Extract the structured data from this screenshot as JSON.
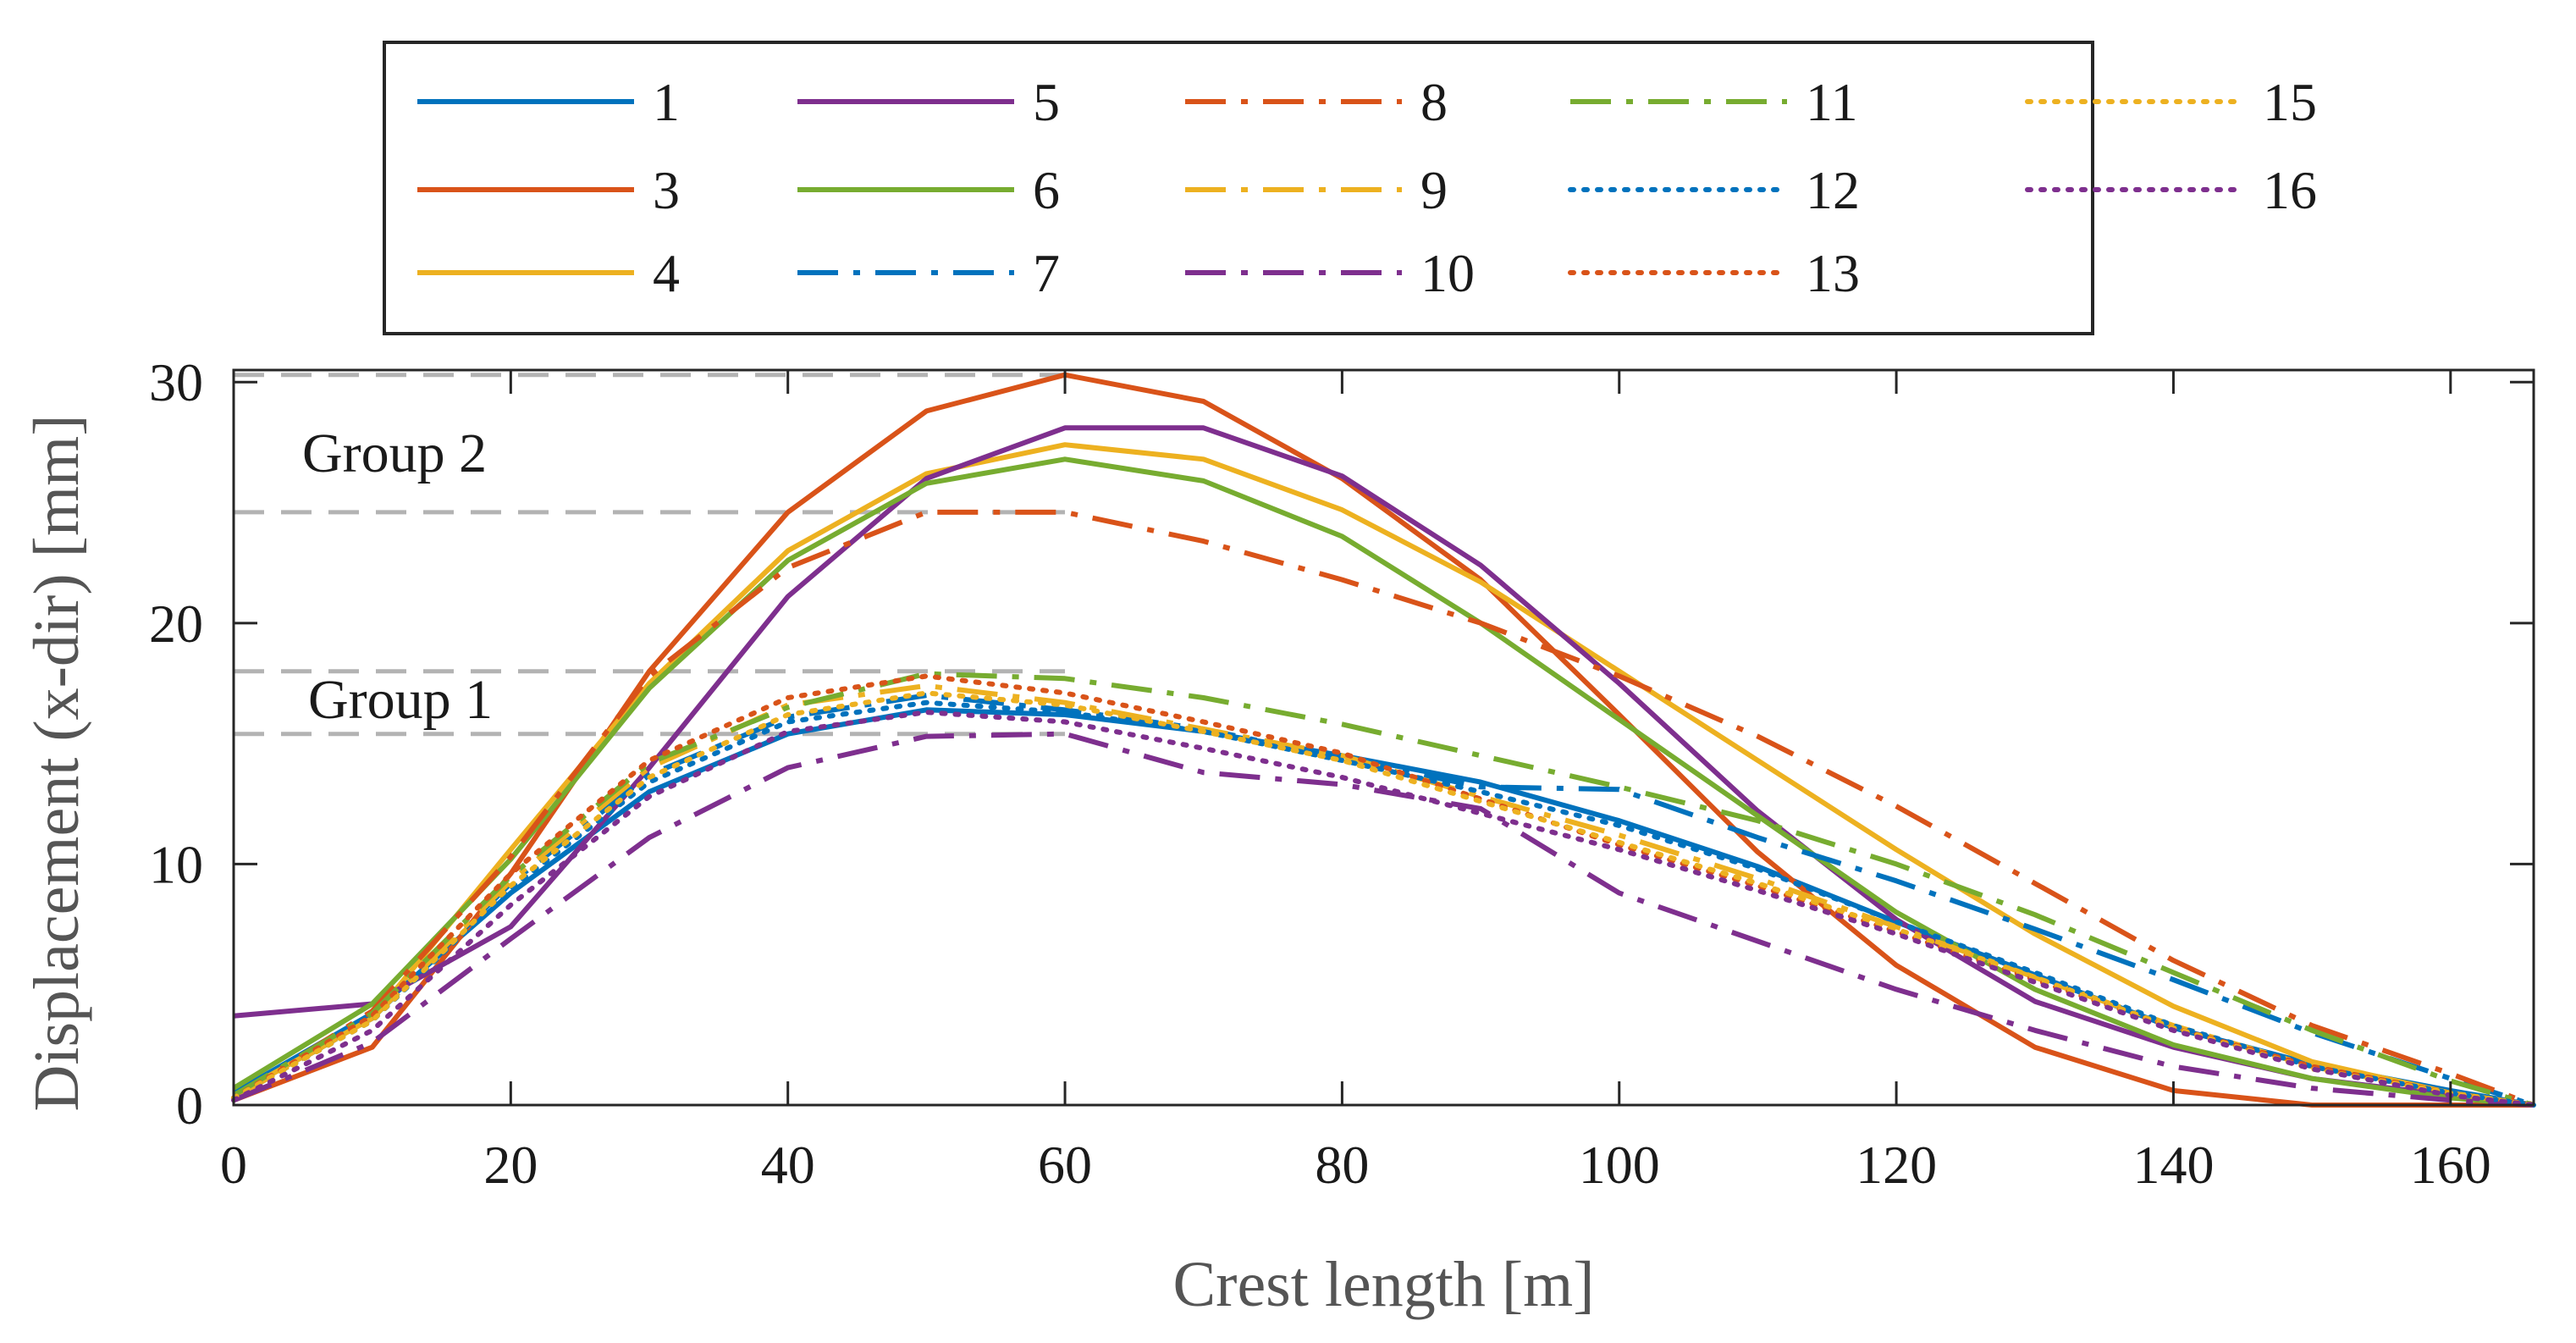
{
  "chart_data": {
    "type": "line",
    "xlabel": "Crest length [m]",
    "ylabel": "Displacement (x-dir) [mm]",
    "xlim": [
      0,
      166
    ],
    "ylim": [
      0,
      30.5
    ],
    "xticks": [
      0,
      20,
      40,
      60,
      80,
      100,
      120,
      140,
      160
    ],
    "yticks": [
      0,
      10,
      20,
      30
    ],
    "xtick_labels": [
      "0",
      "20",
      "40",
      "60",
      "80",
      "100",
      "120",
      "140",
      "160"
    ],
    "ytick_labels": [
      "0",
      "10",
      "20",
      "30"
    ],
    "grid": false,
    "legend_position": "top",
    "legend_columns": 5,
    "annotations": [
      {
        "text": "Group 2",
        "ref_y_upper": 30.3,
        "ref_y_lower": 24.6,
        "x_start": 0,
        "x_end": 60
      },
      {
        "text": "Group 1",
        "ref_y_upper": 18.0,
        "ref_y_lower": 15.4,
        "x_start": 0,
        "x_end": 60
      }
    ],
    "series": [
      {
        "name": "1",
        "color": "#0072BD",
        "style": "solid",
        "x": [
          0,
          10,
          20,
          30,
          40,
          50,
          60,
          70,
          80,
          90,
          100,
          110,
          120,
          130,
          140,
          150,
          160,
          166
        ],
        "y": [
          0.5,
          3.8,
          8.8,
          13.0,
          15.4,
          16.4,
          16.2,
          15.5,
          14.5,
          13.4,
          11.8,
          9.9,
          7.6,
          5.4,
          3.2,
          1.7,
          0.6,
          0
        ]
      },
      {
        "name": "3",
        "color": "#D95319",
        "style": "solid",
        "x": [
          0,
          10,
          20,
          30,
          40,
          50,
          60,
          70,
          80,
          90,
          100,
          110,
          120,
          130,
          140,
          150,
          160,
          166
        ],
        "y": [
          0.2,
          2.4,
          9.6,
          18.0,
          24.6,
          28.8,
          30.3,
          29.2,
          26.0,
          21.8,
          16.2,
          10.5,
          5.8,
          2.4,
          0.6,
          0,
          0,
          0
        ]
      },
      {
        "name": "4",
        "color": "#EDB120",
        "style": "solid",
        "x": [
          0,
          10,
          20,
          30,
          40,
          50,
          60,
          70,
          80,
          90,
          100,
          110,
          120,
          130,
          140,
          150,
          160,
          166
        ],
        "y": [
          0.4,
          3.6,
          10.6,
          17.5,
          23.0,
          26.2,
          27.4,
          26.8,
          24.7,
          21.7,
          18.0,
          14.3,
          10.6,
          7.1,
          4.1,
          1.8,
          0.5,
          0
        ]
      },
      {
        "name": "5",
        "color": "#7E2F8E",
        "style": "solid",
        "x": [
          0,
          10,
          20,
          30,
          40,
          50,
          60,
          70,
          80,
          90,
          100,
          110,
          120,
          130,
          140,
          150,
          160,
          166
        ],
        "y": [
          3.7,
          4.2,
          7.4,
          14.0,
          21.1,
          26.0,
          28.1,
          28.1,
          26.1,
          22.4,
          17.5,
          12.2,
          7.7,
          4.3,
          2.4,
          1.1,
          0.4,
          0
        ]
      },
      {
        "name": "6",
        "color": "#77AC30",
        "style": "solid",
        "x": [
          0,
          10,
          20,
          30,
          40,
          50,
          60,
          70,
          80,
          90,
          100,
          110,
          120,
          130,
          140,
          150,
          160,
          166
        ],
        "y": [
          0.7,
          4.2,
          10.2,
          17.3,
          22.6,
          25.8,
          26.8,
          25.9,
          23.6,
          20.0,
          16.0,
          12.0,
          8.0,
          4.8,
          2.5,
          1.1,
          0.3,
          0
        ]
      },
      {
        "name": "7",
        "color": "#0072BD",
        "style": "dashdot",
        "x": [
          0,
          10,
          20,
          30,
          40,
          50,
          60,
          70,
          80,
          90,
          100,
          110,
          120,
          130,
          140,
          150,
          160,
          166
        ],
        "y": [
          0.3,
          3.6,
          9.2,
          13.7,
          16.1,
          17.0,
          16.4,
          15.6,
          14.4,
          13.2,
          13.1,
          11.1,
          9.3,
          7.3,
          5.2,
          3.0,
          1.1,
          0
        ]
      },
      {
        "name": "8",
        "color": "#D95319",
        "style": "dashdot",
        "x": [
          0,
          10,
          20,
          30,
          40,
          50,
          60,
          70,
          80,
          90,
          100,
          110,
          120,
          130,
          140,
          150,
          160,
          166
        ],
        "y": [
          0.3,
          3.9,
          10.3,
          17.8,
          22.3,
          24.6,
          24.6,
          23.4,
          21.8,
          20.0,
          17.8,
          15.3,
          12.4,
          9.2,
          6.0,
          3.3,
          1.3,
          0
        ]
      },
      {
        "name": "9",
        "color": "#EDB120",
        "style": "dashdot",
        "x": [
          0,
          10,
          20,
          30,
          40,
          50,
          60,
          70,
          80,
          90,
          100,
          110,
          120,
          130,
          140,
          150,
          160,
          166
        ],
        "y": [
          0.3,
          3.6,
          9.3,
          14.0,
          16.6,
          17.4,
          16.7,
          15.6,
          14.5,
          12.8,
          11.2,
          9.4,
          7.4,
          5.3,
          3.3,
          1.6,
          0.5,
          0
        ]
      },
      {
        "name": "10",
        "color": "#7E2F8E",
        "style": "dashdot",
        "x": [
          0,
          10,
          20,
          30,
          40,
          50,
          60,
          70,
          80,
          90,
          100,
          110,
          120,
          130,
          140,
          150,
          160,
          166
        ],
        "y": [
          0.2,
          2.6,
          6.9,
          11.1,
          14.0,
          15.3,
          15.4,
          13.8,
          13.3,
          12.3,
          8.8,
          6.8,
          4.8,
          3.1,
          1.6,
          0.7,
          0.2,
          0
        ]
      },
      {
        "name": "11",
        "color": "#77AC30",
        "style": "dashdot",
        "x": [
          0,
          10,
          20,
          30,
          40,
          50,
          60,
          70,
          80,
          90,
          100,
          110,
          120,
          130,
          140,
          150,
          160,
          166
        ],
        "y": [
          0.4,
          3.8,
          9.5,
          14.2,
          16.5,
          17.9,
          17.7,
          16.9,
          15.8,
          14.5,
          13.2,
          11.8,
          10.0,
          7.9,
          5.5,
          3.1,
          1.0,
          0
        ]
      },
      {
        "name": "12",
        "color": "#0072BD",
        "style": "dotted",
        "x": [
          0,
          10,
          20,
          30,
          40,
          50,
          60,
          70,
          80,
          90,
          100,
          110,
          120,
          130,
          140,
          150,
          160,
          166
        ],
        "y": [
          0.3,
          3.5,
          9.0,
          13.4,
          15.9,
          16.7,
          16.3,
          15.5,
          14.3,
          13.0,
          11.6,
          9.8,
          7.6,
          5.5,
          3.3,
          1.6,
          0.5,
          0
        ]
      },
      {
        "name": "13",
        "color": "#D95319",
        "style": "dotted",
        "x": [
          0,
          10,
          20,
          30,
          40,
          50,
          60,
          70,
          80,
          90,
          100,
          110,
          120,
          130,
          140,
          150,
          160,
          166
        ],
        "y": [
          0.3,
          3.7,
          9.6,
          14.3,
          16.9,
          17.8,
          17.1,
          15.9,
          14.6,
          12.7,
          10.8,
          9.1,
          7.2,
          5.2,
          3.2,
          1.6,
          0.5,
          0
        ]
      },
      {
        "name": "15",
        "color": "#EDB120",
        "style": "dotted",
        "x": [
          0,
          10,
          20,
          30,
          40,
          50,
          60,
          70,
          80,
          90,
          100,
          110,
          120,
          130,
          140,
          150,
          160,
          166
        ],
        "y": [
          0.3,
          3.5,
          9.1,
          13.6,
          16.2,
          17.1,
          16.6,
          15.5,
          14.3,
          12.6,
          10.9,
          9.2,
          7.3,
          5.3,
          3.2,
          1.5,
          0.5,
          0
        ]
      },
      {
        "name": "16",
        "color": "#7E2F8E",
        "style": "dotted",
        "x": [
          0,
          10,
          20,
          30,
          40,
          50,
          60,
          70,
          80,
          90,
          100,
          110,
          120,
          130,
          140,
          150,
          160,
          166
        ],
        "y": [
          0.2,
          3.1,
          8.3,
          12.8,
          15.5,
          16.3,
          15.9,
          14.8,
          13.6,
          12.1,
          10.6,
          8.9,
          7.1,
          5.1,
          3.1,
          1.5,
          0.4,
          0
        ]
      }
    ]
  }
}
